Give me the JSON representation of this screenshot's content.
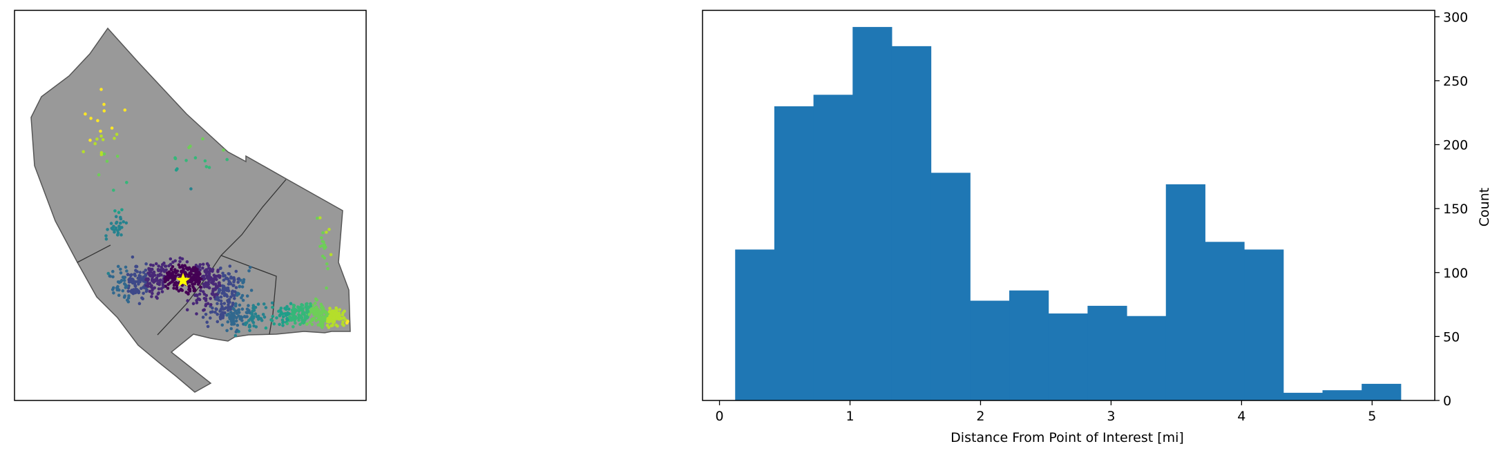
{
  "colors": {
    "bar": "#1f77b4",
    "region_fill": "#999999",
    "region_edge": "#555555",
    "poi_star": "#ffff00"
  },
  "map": {
    "type": "map",
    "markers": [
      {
        "name": "point-of-interest",
        "symbol": "star",
        "color": "#ffff00"
      }
    ],
    "colormap": "viridis",
    "ticks": "none"
  },
  "chart_data": {
    "type": "bar",
    "title": "",
    "xlabel": "Distance From Point of Interest [mi]",
    "ylabel": "Count",
    "y_axis_side": "right",
    "xlim": [
      -0.13,
      5.48
    ],
    "ylim": [
      0,
      305
    ],
    "xticks": [
      0,
      1,
      2,
      3,
      4,
      5
    ],
    "yticks": [
      0,
      50,
      100,
      150,
      200,
      250,
      300
    ],
    "bin_edges": [
      0.12,
      0.42,
      0.72,
      1.02,
      1.32,
      1.62,
      1.92,
      2.22,
      2.52,
      2.82,
      3.12,
      3.42,
      3.72,
      4.02,
      4.32,
      4.62,
      4.92,
      5.22
    ],
    "values": [
      118,
      230,
      239,
      292,
      277,
      178,
      78,
      86,
      68,
      74,
      66,
      169,
      124,
      118,
      6,
      8,
      13
    ]
  }
}
